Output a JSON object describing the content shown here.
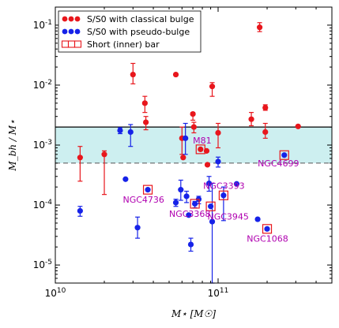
{
  "chart_data": {
    "type": "scatter",
    "xscale": "log",
    "yscale": "log",
    "xlim": [
      10000000000.0,
      500000000000.0
    ],
    "ylim": [
      5e-06,
      0.2
    ],
    "xlabel": "M⋆ [M☉]",
    "ylabel": "M_bh / M⋆",
    "x_ticks": [
      {
        "value": 10000000000.0,
        "base": "10",
        "exp": "10"
      },
      {
        "value": 100000000000.0,
        "base": "10",
        "exp": "11"
      }
    ],
    "y_ticks": [
      {
        "value": 1e-05,
        "base": "10",
        "exp": "-5"
      },
      {
        "value": 0.0001,
        "base": "10",
        "exp": "-4"
      },
      {
        "value": 0.001,
        "base": "10",
        "exp": "-3"
      },
      {
        "value": 0.01,
        "base": "10",
        "exp": "-2"
      },
      {
        "value": 0.1,
        "base": "10",
        "exp": "-1"
      }
    ],
    "band": {
      "ylow": 0.0005,
      "yhigh": 0.002,
      "color": "#cdeff0"
    },
    "colors": {
      "classical": "#e8161c",
      "pseudo": "#1622e8",
      "bar": "#e8161c",
      "annotation": "#b000b0",
      "band": "#cdeff0"
    },
    "legend": {
      "position": "top-left",
      "entries": [
        {
          "label": "S/S0 with classical bulge",
          "kind": "classical"
        },
        {
          "label": "S/S0 with pseudo-bulge",
          "kind": "pseudo"
        },
        {
          "label": "Short (inner) bar",
          "kind": "bar"
        }
      ]
    },
    "series": [
      {
        "name": "S/S0 with classical bulge",
        "points": [
          {
            "x": 14200000000.0,
            "y": 0.00062,
            "lo": 0.00025,
            "hi": 0.00095
          },
          {
            "x": 20000000000.0,
            "y": 0.0007,
            "lo": 0.00015,
            "hi": 0.0008
          },
          {
            "x": 30000000000.0,
            "y": 0.015,
            "lo": 0.0105,
            "hi": 0.023
          },
          {
            "x": 35500000000.0,
            "y": 0.005,
            "lo": 0.0035,
            "hi": 0.0065
          },
          {
            "x": 36000000000.0,
            "y": 0.0024,
            "lo": 0.0018,
            "hi": 0.003
          },
          {
            "x": 55000000000.0,
            "y": 0.015
          },
          {
            "x": 60000000000.0,
            "y": 0.0013,
            "lo": 0.0007,
            "hi": 0.002
          },
          {
            "x": 61000000000.0,
            "y": 0.00062
          },
          {
            "x": 70000000000.0,
            "y": 0.0033,
            "lo": 0.0026,
            "hi": 0.0035
          },
          {
            "x": 71000000000.0,
            "y": 0.002,
            "lo": 0.0016,
            "hi": 0.0024
          },
          {
            "x": 78000000000.0,
            "y": 0.00085
          },
          {
            "x": 85000000000.0,
            "y": 0.0008
          },
          {
            "x": 86000000000.0,
            "y": 0.00047
          },
          {
            "x": 92000000000.0,
            "y": 0.0095,
            "lo": 0.0065,
            "hi": 0.011
          },
          {
            "x": 100000000000.0,
            "y": 0.0016,
            "lo": 0.0009,
            "hi": 0.0023
          },
          {
            "x": 160000000000.0,
            "y": 0.0027,
            "lo": 0.0021,
            "hi": 0.0035
          },
          {
            "x": 180000000000.0,
            "y": 0.092,
            "lo": 0.078,
            "hi": 0.11
          },
          {
            "x": 195000000000.0,
            "y": 0.0042,
            "lo": 0.0038,
            "hi": 0.0047
          },
          {
            "x": 195000000000.0,
            "y": 0.00165,
            "lo": 0.0013,
            "hi": 0.0023
          },
          {
            "x": 310000000000.0,
            "y": 0.00205
          }
        ]
      },
      {
        "name": "S/S0 with pseudo-bulge",
        "points": [
          {
            "x": 14200000000.0,
            "y": 8e-05,
            "lo": 6.5e-05,
            "hi": 9.5e-05
          },
          {
            "x": 25000000000.0,
            "y": 0.00175,
            "lo": 0.00155,
            "hi": 0.00195
          },
          {
            "x": 27000000000.0,
            "y": 0.00027
          },
          {
            "x": 29000000000.0,
            "y": 0.00165,
            "lo": 0.00095,
            "hi": 0.0022
          },
          {
            "x": 32000000000.0,
            "y": 4.2e-05,
            "lo": 2.8e-05,
            "hi": 6.3e-05
          },
          {
            "x": 37000000000.0,
            "y": 0.00018
          },
          {
            "x": 55000000000.0,
            "y": 0.00011,
            "lo": 9.5e-05,
            "hi": 0.000125
          },
          {
            "x": 59000000000.0,
            "y": 0.00018,
            "lo": 0.00012,
            "hi": 0.00026
          },
          {
            "x": 63000000000.0,
            "y": 0.0013,
            "lo": 0.0007,
            "hi": 0.0023
          },
          {
            "x": 64000000000.0,
            "y": 0.00014,
            "lo": 0.00011,
            "hi": 0.00017
          },
          {
            "x": 66000000000.0,
            "y": 6.8e-05
          },
          {
            "x": 68000000000.0,
            "y": 2.2e-05,
            "lo": 1.7e-05,
            "hi": 2.8e-05
          },
          {
            "x": 72000000000.0,
            "y": 0.000105,
            "lo": 9e-05,
            "hi": 0.000115
          },
          {
            "x": 76000000000.0,
            "y": 0.000125,
            "lo": 0.000105,
            "hi": 0.00014
          },
          {
            "x": 88000000000.0,
            "y": 0.00023,
            "lo": 0.00017,
            "hi": 0.0003
          },
          {
            "x": 90000000000.0,
            "y": 9.5e-05
          },
          {
            "x": 92000000000.0,
            "y": 5.3e-05,
            "lo": 5e-06,
            "hi": 0.00023
          },
          {
            "x": 100000000000.0,
            "y": 0.00053,
            "lo": 0.00043,
            "hi": 0.00063
          },
          {
            "x": 108000000000.0,
            "y": 0.000145,
            "lo": 5.5e-05,
            "hi": 0.0002
          },
          {
            "x": 130000000000.0,
            "y": 0.000225
          },
          {
            "x": 175000000000.0,
            "y": 5.8e-05
          },
          {
            "x": 200000000000.0,
            "y": 4e-05
          },
          {
            "x": 255000000000.0,
            "y": 0.00068
          }
        ]
      },
      {
        "name": "Short (inner) bar",
        "points": [
          {
            "x": 37000000000.0,
            "y": 0.00018
          },
          {
            "x": 72000000000.0,
            "y": 0.000105
          },
          {
            "x": 78000000000.0,
            "y": 0.00085
          },
          {
            "x": 90000000000.0,
            "y": 9.5e-05
          },
          {
            "x": 108000000000.0,
            "y": 0.000145
          },
          {
            "x": 200000000000.0,
            "y": 4e-05
          },
          {
            "x": 255000000000.0,
            "y": 0.00068
          }
        ]
      }
    ],
    "annotations": [
      {
        "text": "M81",
        "x": 70000000000.0,
        "y": 0.00107
      },
      {
        "text": "NGC4699",
        "x": 175000000000.0,
        "y": 0.00044
      },
      {
        "text": "NGC4736",
        "x": 26000000000.0,
        "y": 0.00011
      },
      {
        "text": "NGC3393",
        "x": 81000000000.0,
        "y": 0.000185
      },
      {
        "text": "NGC3368",
        "x": 50000000000.0,
        "y": 6.4e-05
      },
      {
        "text": "NGC3945",
        "x": 86000000000.0,
        "y": 5.7e-05
      },
      {
        "text": "NGC1068",
        "x": 150000000000.0,
        "y": 2.45e-05
      }
    ]
  }
}
